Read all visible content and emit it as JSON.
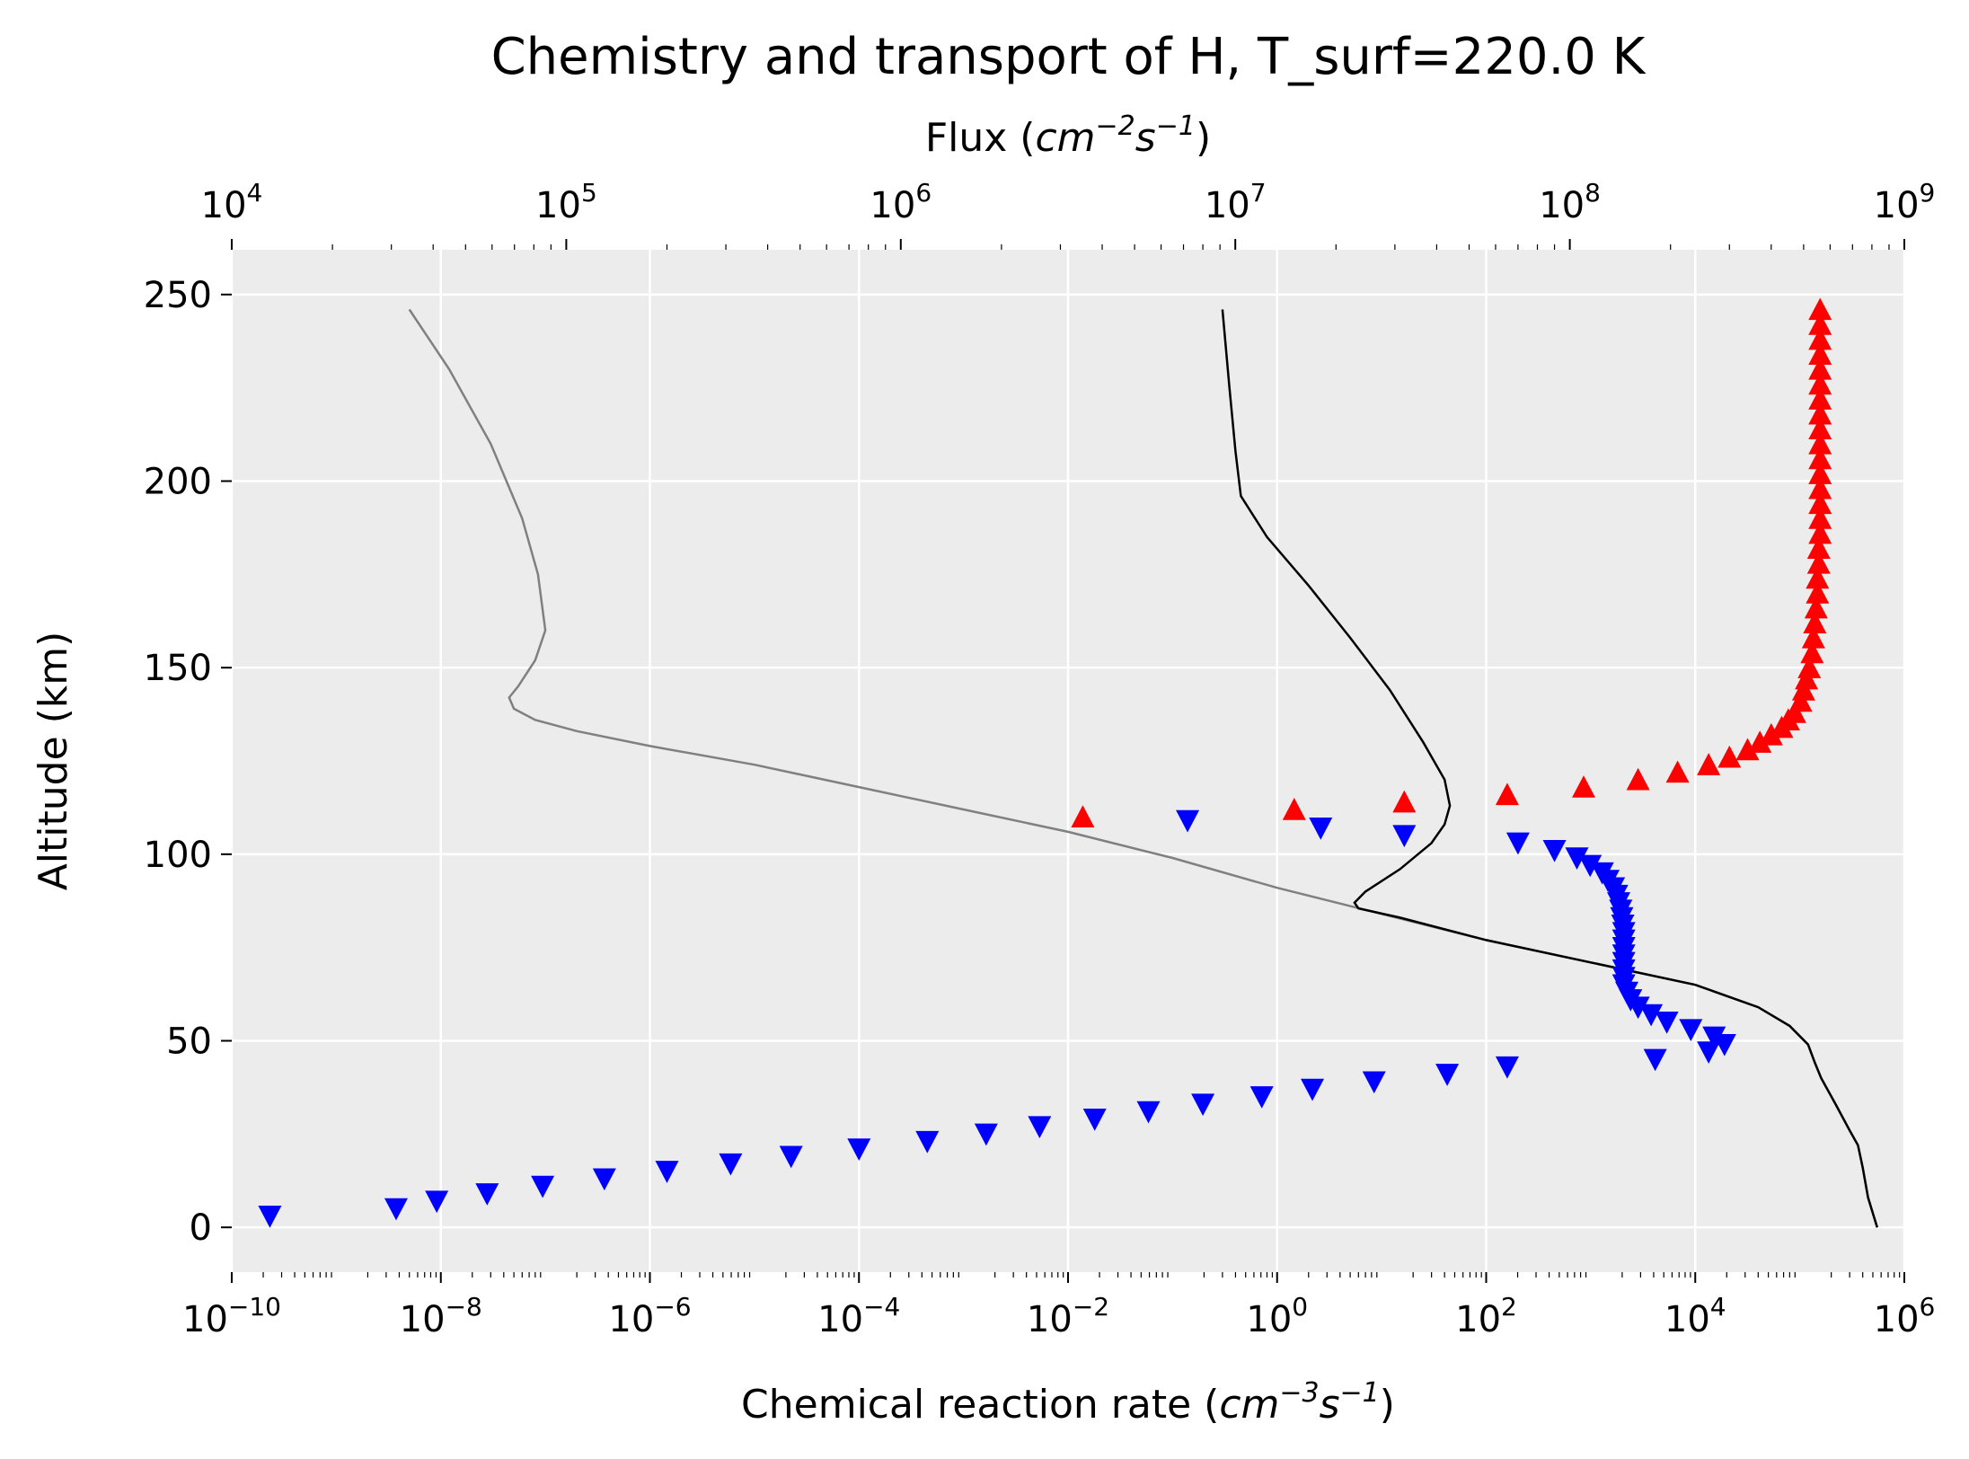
{
  "chart_data": {
    "type": "line",
    "title": "Chemistry and transport of H, T_surf=220.0 K",
    "xlabel": "Chemical reaction rate (cm^-3 s^-1)",
    "xlabel_text": "Chemical reaction rate (",
    "xlabel_unit": "cm",
    "xlabel_exp1": "−3",
    "xlabel_unit2": "s",
    "xlabel_exp2": "−1",
    "xlabel_close": ")",
    "x2label": "Flux (cm^-2 s^-1)",
    "x2label_text": "Flux (",
    "x2label_unit": "cm",
    "x2label_exp1": "−2",
    "x2label_unit2": "s",
    "x2label_exp2": "−1",
    "x2label_close": ")",
    "ylabel": "Altitude (km)",
    "xscale": "log",
    "x2scale": "log",
    "xlim": [
      1e-10,
      1000000.0
    ],
    "x2lim": [
      10000.0,
      1000000000.0
    ],
    "ylim": [
      -12,
      262
    ],
    "grid": true,
    "background": "#ececec",
    "xticks": [
      {
        "base": "10",
        "exp": "-10",
        "value": 1e-10
      },
      {
        "base": "10",
        "exp": "-8",
        "value": 1e-08
      },
      {
        "base": "10",
        "exp": "-6",
        "value": 1e-06
      },
      {
        "base": "10",
        "exp": "-4",
        "value": 0.0001
      },
      {
        "base": "10",
        "exp": "-2",
        "value": 0.01
      },
      {
        "base": "10",
        "exp": "0",
        "value": 1
      },
      {
        "base": "10",
        "exp": "2",
        "value": 100.0
      },
      {
        "base": "10",
        "exp": "4",
        "value": 10000.0
      },
      {
        "base": "10",
        "exp": "6",
        "value": 1000000.0
      }
    ],
    "x2ticks": [
      {
        "base": "10",
        "exp": "4",
        "value": 10000.0
      },
      {
        "base": "10",
        "exp": "5",
        "value": 100000.0
      },
      {
        "base": "10",
        "exp": "6",
        "value": 1000000.0
      },
      {
        "base": "10",
        "exp": "7",
        "value": 10000000.0
      },
      {
        "base": "10",
        "exp": "8",
        "value": 100000000.0
      },
      {
        "base": "10",
        "exp": "9",
        "value": 1000000000.0
      }
    ],
    "yticks": [
      {
        "label": "0",
        "value": 0
      },
      {
        "label": "50",
        "value": 50
      },
      {
        "label": "100",
        "value": 100
      },
      {
        "label": "150",
        "value": 150
      },
      {
        "label": "200",
        "value": 200
      },
      {
        "label": "250",
        "value": 250
      }
    ],
    "series": [
      {
        "id": "gray-line",
        "kind": "line",
        "axis": "x",
        "color": "#808080",
        "points": [
          [
            5e-09,
            246
          ],
          [
            1.2e-08,
            230
          ],
          [
            3e-08,
            210
          ],
          [
            6e-08,
            190
          ],
          [
            8.5e-08,
            175
          ],
          [
            1e-07,
            160
          ],
          [
            8e-08,
            152
          ],
          [
            5.5e-08,
            145
          ],
          [
            4.5e-08,
            142
          ],
          [
            5e-08,
            139
          ],
          [
            8e-08,
            136
          ],
          [
            2e-07,
            133
          ],
          [
            1e-06,
            129
          ],
          [
            1e-05,
            124
          ],
          [
            0.0001,
            118
          ],
          [
            0.001,
            112
          ],
          [
            0.01,
            106
          ],
          [
            0.1,
            99
          ],
          [
            1,
            91
          ],
          [
            10,
            84
          ],
          [
            100,
            77
          ],
          [
            1000,
            71
          ],
          [
            10000.0,
            65
          ],
          [
            40000.0,
            59
          ],
          [
            80000.0,
            54
          ],
          [
            120000.0,
            49
          ],
          [
            140000.0,
            44
          ],
          [
            160000.0,
            40
          ],
          [
            220000.0,
            33
          ],
          [
            300000.0,
            26
          ],
          [
            360000.0,
            22
          ],
          [
            400000.0,
            16
          ],
          [
            450000.0,
            8
          ],
          [
            550000.0,
            0
          ]
        ]
      },
      {
        "id": "black-line",
        "kind": "line",
        "axis": "x",
        "color": "#000000",
        "points": [
          [
            0.3,
            246
          ],
          [
            0.35,
            225
          ],
          [
            0.4,
            208
          ],
          [
            0.45,
            196
          ],
          [
            0.8,
            185
          ],
          [
            2,
            172
          ],
          [
            5,
            158
          ],
          [
            12,
            144
          ],
          [
            25,
            130
          ],
          [
            40,
            120
          ],
          [
            45,
            113
          ],
          [
            40,
            108
          ],
          [
            30,
            103
          ],
          [
            15,
            96
          ],
          [
            7,
            90
          ],
          [
            5.5,
            87
          ],
          [
            6,
            85.5
          ],
          [
            15,
            83
          ],
          [
            100,
            77
          ],
          [
            1000,
            71
          ],
          [
            10000.0,
            65
          ],
          [
            40000.0,
            59
          ],
          [
            80000.0,
            54
          ],
          [
            120000.0,
            49
          ],
          [
            140000.0,
            44
          ],
          [
            160000.0,
            40
          ],
          [
            220000.0,
            33
          ],
          [
            300000.0,
            26
          ],
          [
            360000.0,
            22
          ],
          [
            400000.0,
            16
          ],
          [
            450000.0,
            8
          ],
          [
            550000.0,
            0
          ]
        ]
      },
      {
        "id": "red-triangles-up",
        "kind": "marker",
        "axis": "x2",
        "marker": "triangle-up",
        "color": "#ff0000",
        "points": [
          [
            3500000.0,
            110
          ],
          [
            15000000.0,
            112
          ],
          [
            32000000.0,
            114
          ],
          [
            65000000.0,
            116
          ],
          [
            110000000.0,
            118
          ],
          [
            160000000.0,
            120
          ],
          [
            210000000.0,
            122
          ],
          [
            260000000.0,
            124
          ],
          [
            300000000.0,
            126
          ],
          [
            340000000.0,
            128
          ],
          [
            370000000.0,
            130
          ],
          [
            400000000.0,
            132
          ],
          [
            430000000.0,
            134
          ],
          [
            450000000.0,
            136
          ],
          [
            470000000.0,
            138
          ],
          [
            490000000.0,
            141
          ],
          [
            500000000.0,
            144
          ],
          [
            510000000.0,
            147
          ],
          [
            520000000.0,
            150
          ],
          [
            530000000.0,
            154
          ],
          [
            535000000.0,
            158
          ],
          [
            540000000.0,
            162
          ],
          [
            545000000.0,
            166
          ],
          [
            550000000.0,
            170
          ],
          [
            550000000.0,
            174
          ],
          [
            555000000.0,
            178
          ],
          [
            555000000.0,
            182
          ],
          [
            560000000.0,
            186
          ],
          [
            560000000.0,
            190
          ],
          [
            560000000.0,
            194
          ],
          [
            560000000.0,
            198
          ],
          [
            560000000.0,
            202
          ],
          [
            560000000.0,
            206
          ],
          [
            560000000.0,
            210
          ],
          [
            560000000.0,
            214
          ],
          [
            560000000.0,
            218
          ],
          [
            560000000.0,
            222
          ],
          [
            560000000.0,
            226
          ],
          [
            560000000.0,
            230
          ],
          [
            560000000.0,
            234
          ],
          [
            560000000.0,
            238
          ],
          [
            560000000.0,
            242
          ],
          [
            560000000.0,
            246
          ]
        ]
      },
      {
        "id": "blue-triangles-down",
        "kind": "marker",
        "axis": "x2",
        "marker": "triangle-down",
        "color": "#0000ff",
        "points": [
          [
            7200000.0,
            109
          ],
          [
            18000000.0,
            107
          ],
          [
            32000000.0,
            105
          ],
          [
            70000000.0,
            103
          ],
          [
            90000000.0,
            101
          ],
          [
            105000000.0,
            99
          ],
          [
            115000000.0,
            97
          ],
          [
            125000000.0,
            95
          ],
          [
            130000000.0,
            93
          ],
          [
            135000000.0,
            91
          ],
          [
            138000000.0,
            89
          ],
          [
            140000000.0,
            87
          ],
          [
            142000000.0,
            85
          ],
          [
            143000000.0,
            83
          ],
          [
            144000000.0,
            81
          ],
          [
            145000000.0,
            79
          ],
          [
            145000000.0,
            77
          ],
          [
            145000000.0,
            75
          ],
          [
            145000000.0,
            73
          ],
          [
            145000000.0,
            71
          ],
          [
            145000000.0,
            69
          ],
          [
            145000000.0,
            67
          ],
          [
            145000000.0,
            65
          ],
          [
            148000000.0,
            63
          ],
          [
            152000000.0,
            61
          ],
          [
            160000000.0,
            59
          ],
          [
            175000000.0,
            57
          ],
          [
            195000000.0,
            55
          ],
          [
            230000000.0,
            53
          ],
          [
            270000000.0,
            51
          ],
          [
            290000000.0,
            49
          ],
          [
            260000000.0,
            47
          ],
          [
            180000000.0,
            45
          ],
          [
            65000000.0,
            43
          ],
          [
            43000000.0,
            41
          ],
          [
            26000000.0,
            39
          ],
          [
            17000000.0,
            37
          ],
          [
            12000000.0,
            35
          ],
          [
            8000000.0,
            33
          ],
          [
            5500000.0,
            31
          ],
          [
            3800000.0,
            29
          ],
          [
            2600000.0,
            27
          ],
          [
            1800000.0,
            25
          ],
          [
            1200000.0,
            23
          ],
          [
            750000.0,
            21
          ],
          [
            470000.0,
            19
          ],
          [
            310000.0,
            17
          ],
          [
            200000.0,
            15
          ],
          [
            130000.0,
            13
          ],
          [
            85000.0,
            11
          ],
          [
            58000.0,
            9
          ],
          [
            41000.0,
            7
          ],
          [
            31000.0,
            5
          ],
          [
            13000.0,
            3
          ]
        ]
      }
    ]
  }
}
